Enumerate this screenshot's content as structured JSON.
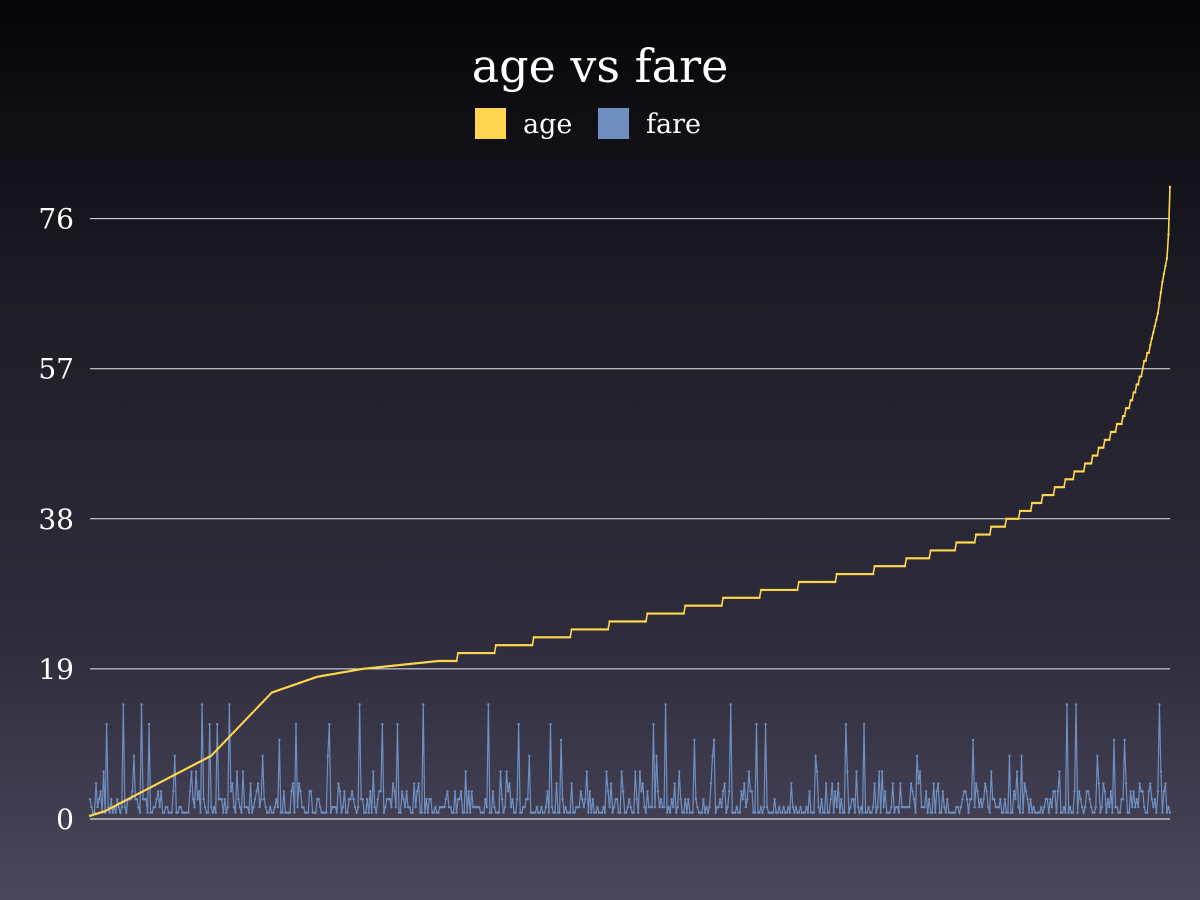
{
  "chart_data": {
    "type": "line",
    "title": "age vs fare",
    "legend_position": "top",
    "grid": true,
    "ylim": [
      0,
      80
    ],
    "y_ticks": [
      0,
      19,
      38,
      57,
      76
    ],
    "n_points": 714,
    "series": [
      {
        "name": "age",
        "color": "#ffd54f",
        "profile": [
          [
            0,
            0.4
          ],
          [
            10,
            1
          ],
          [
            20,
            2
          ],
          [
            40,
            4
          ],
          [
            60,
            6
          ],
          [
            80,
            8
          ],
          [
            100,
            12
          ],
          [
            110,
            14
          ],
          [
            120,
            16
          ],
          [
            150,
            18
          ],
          [
            180,
            19
          ],
          [
            230,
            20
          ],
          [
            280,
            22
          ],
          [
            330,
            24
          ],
          [
            380,
            26
          ],
          [
            430,
            28
          ],
          [
            480,
            30
          ],
          [
            530,
            32
          ],
          [
            580,
            35
          ],
          [
            610,
            38
          ],
          [
            640,
            42
          ],
          [
            660,
            45
          ],
          [
            680,
            50
          ],
          [
            690,
            54
          ],
          [
            700,
            60
          ],
          [
            705,
            64
          ],
          [
            708,
            68
          ],
          [
            711,
            71
          ],
          [
            712,
            74
          ],
          [
            713,
            80
          ]
        ]
      },
      {
        "name": "fare",
        "color": "#6f8fc0",
        "spike_values": [
          0.8,
          1.5,
          2.5,
          3.5,
          4.5,
          6,
          8,
          10,
          12,
          14.5
        ],
        "seed": 17
      }
    ]
  }
}
